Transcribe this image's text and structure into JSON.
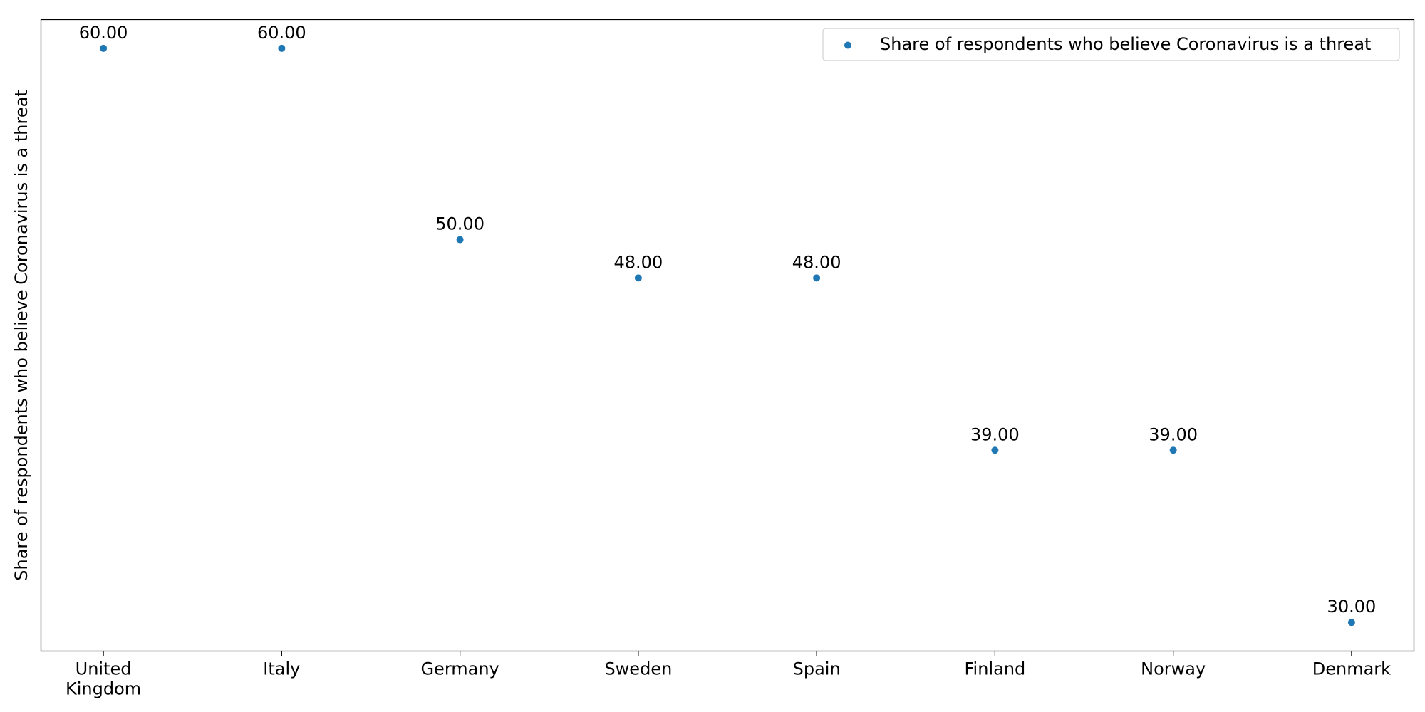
{
  "chart_data": {
    "type": "scatter",
    "categories": [
      "United\nKingdom",
      "Italy",
      "Germany",
      "Sweden",
      "Spain",
      "Finland",
      "Norway",
      "Denmark"
    ],
    "series": [
      {
        "name": "Share of respondents who believe Coronavirus is a threat",
        "values": [
          60,
          60,
          50,
          48,
          48,
          39,
          39,
          30
        ],
        "color": "#1f77b4"
      }
    ],
    "value_labels": [
      "60.00",
      "60.00",
      "50.00",
      "48.00",
      "48.00",
      "39.00",
      "39.00",
      "30.00"
    ],
    "title": "",
    "xlabel": "",
    "ylabel": "Share of respondents who believe Coronavirus is a threat",
    "ylim": [
      28.5,
      61.5
    ],
    "y_ticks_shown": false,
    "grid": false,
    "legend": {
      "position": "top-right",
      "entries": [
        "Share of respondents who believe Coronavirus is a threat"
      ]
    }
  }
}
